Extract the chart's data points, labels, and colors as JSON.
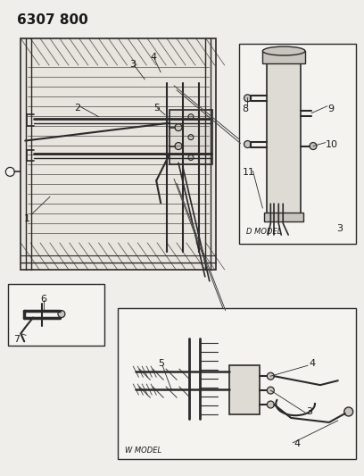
{
  "title": "6307 800",
  "bg": "#f0eeeb",
  "lc": "#2a2a2a",
  "tc": "#1a1a1a",
  "fig_w": 4.08,
  "fig_h": 5.33,
  "dpi": 100,
  "gray_fill": "#c8c4be",
  "light_gray": "#dedad4",
  "rad_fill": "#e8e4de",
  "inset_bg": "#f5f3f0"
}
